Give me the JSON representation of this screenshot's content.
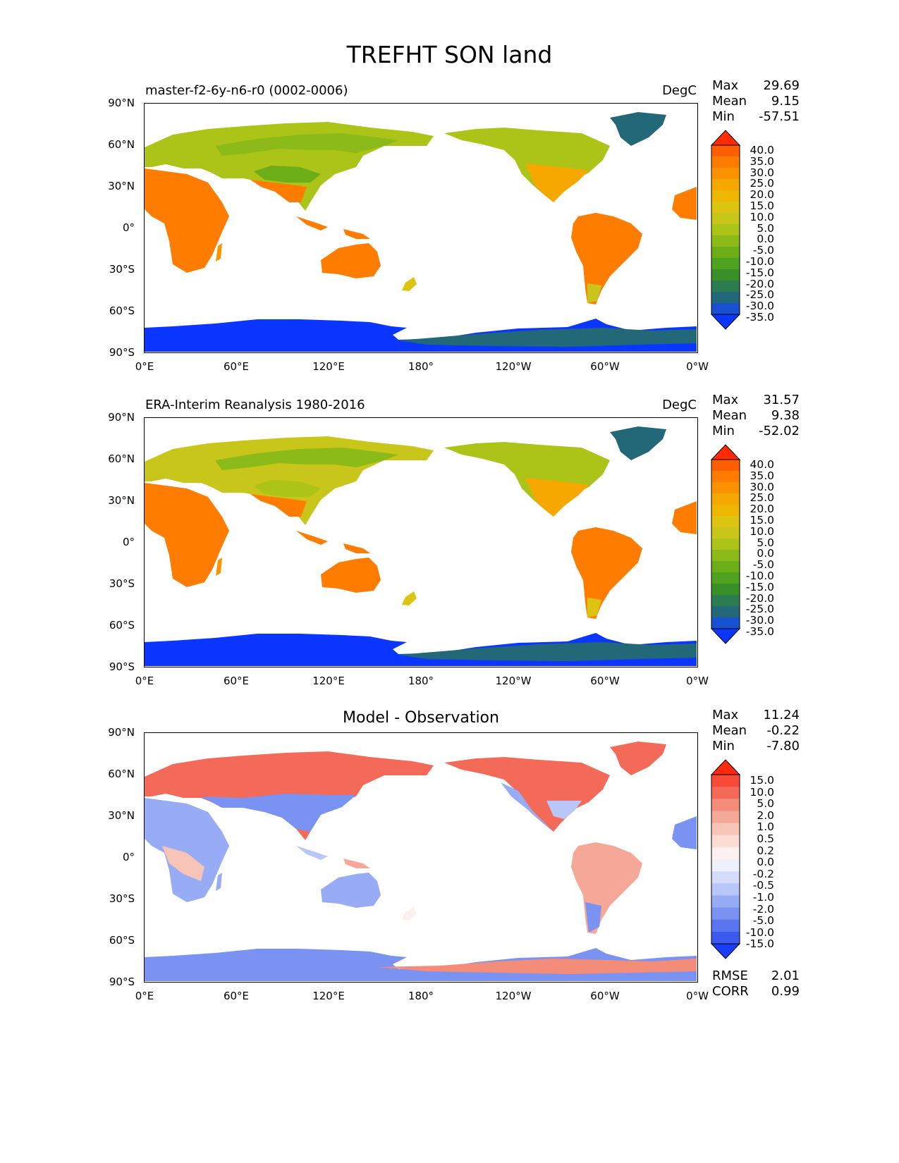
{
  "figure": {
    "title": "TREFHT SON land"
  },
  "panels": [
    {
      "id": "test",
      "title": "master-f2-6y-n6-r0 (0002-0006)",
      "units": "DegC",
      "stats": [
        {
          "label": "Max",
          "value": "29.69"
        },
        {
          "label": "Mean",
          "value": "9.15"
        },
        {
          "label": "Min",
          "value": "-57.51"
        }
      ],
      "colorbar_labels": [
        "40.0",
        "35.0",
        "30.0",
        "25.0",
        "20.0",
        "15.0",
        "10.0",
        "5.0",
        "0.0",
        "-5.0",
        "-10.0",
        "-15.0",
        "-20.0",
        "-25.0",
        "-30.0",
        "-35.0"
      ],
      "colorbar_colors": [
        "#fe2c00",
        "#fe5e00",
        "#fe7c00",
        "#fb9300",
        "#f7a800",
        "#efb800",
        "#dcc410",
        "#c8c61a",
        "#acc318",
        "#8cba18",
        "#6cae18",
        "#4ea21e",
        "#3a9028",
        "#2c7c52",
        "#236878",
        "#1750d0",
        "#0a36ff"
      ]
    },
    {
      "id": "reference",
      "title": "ERA-Interim Reanalysis 1980-2016",
      "units": "DegC",
      "stats": [
        {
          "label": "Max",
          "value": "31.57"
        },
        {
          "label": "Mean",
          "value": "9.38"
        },
        {
          "label": "Min",
          "value": "-52.02"
        }
      ],
      "colorbar_labels": [
        "40.0",
        "35.0",
        "30.0",
        "25.0",
        "20.0",
        "15.0",
        "10.0",
        "5.0",
        "0.0",
        "-5.0",
        "-10.0",
        "-15.0",
        "-20.0",
        "-25.0",
        "-30.0",
        "-35.0"
      ],
      "colorbar_colors": [
        "#fe2c00",
        "#fe5e00",
        "#fe7c00",
        "#fb9300",
        "#f7a800",
        "#efb800",
        "#dcc410",
        "#c8c61a",
        "#acc318",
        "#8cba18",
        "#6cae18",
        "#4ea21e",
        "#3a9028",
        "#2c7c52",
        "#236878",
        "#1750d0",
        "#0a36ff"
      ]
    },
    {
      "id": "diff",
      "title": "Model - Observation",
      "units": "",
      "stats": [
        {
          "label": "Max",
          "value": "11.24"
        },
        {
          "label": "Mean",
          "value": "-0.22"
        },
        {
          "label": "Min",
          "value": "-7.80"
        }
      ],
      "metrics": [
        {
          "label": "RMSE",
          "value": "2.01"
        },
        {
          "label": "CORR",
          "value": "0.99"
        }
      ],
      "colorbar_labels": [
        "15.0",
        "10.0",
        "5.0",
        "2.0",
        "1.0",
        "0.5",
        "0.2",
        "0.0",
        "-0.2",
        "-0.5",
        "-1.0",
        "-2.0",
        "-5.0",
        "-10.0",
        "-15.0"
      ],
      "colorbar_colors": [
        "#fe2a10",
        "#f84a38",
        "#f46a58",
        "#f48c7a",
        "#f6a898",
        "#f9c4b8",
        "#fcdcd4",
        "#fdf0ee",
        "#eef0fc",
        "#d4dcfa",
        "#b8c6f8",
        "#98acf6",
        "#7a92f2",
        "#5a76ee",
        "#3c5af0",
        "#1a3cfc"
      ]
    }
  ],
  "axes": {
    "y_ticks": [
      "90°N",
      "60°N",
      "30°N",
      "0°",
      "30°S",
      "60°S",
      "90°S"
    ],
    "x_ticks": [
      "0°E",
      "60°E",
      "120°E",
      "180°",
      "120°W",
      "60°W",
      "0°W"
    ]
  }
}
